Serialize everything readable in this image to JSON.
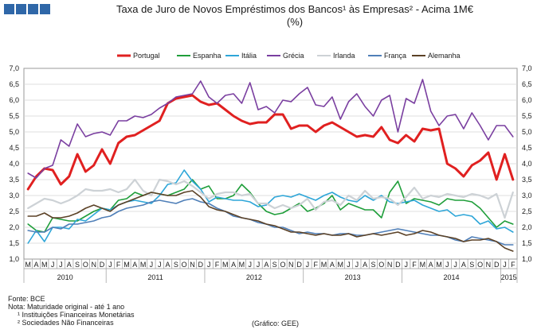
{
  "brand": {
    "logo_color": "#2f67a8"
  },
  "chart_data": {
    "type": "line",
    "title": "Taxa de Juro de Novos Empréstimos dos Bancos¹ às Empresas² - Acima 1M€",
    "subtitle": "(%)",
    "xlabel": "",
    "ylabel": "",
    "ylim": [
      1.0,
      7.0
    ],
    "yticks": [
      "1,0",
      "1,5",
      "2,0",
      "2,5",
      "3,0",
      "3,5",
      "4,0",
      "4,5",
      "5,0",
      "5,5",
      "6,0",
      "6,5",
      "7,0"
    ],
    "grid": true,
    "legend_position": "top",
    "month_labels": [
      "M",
      "A",
      "M",
      "J",
      "J",
      "A",
      "S",
      "O",
      "N",
      "D",
      "J",
      "F",
      "M",
      "A",
      "M",
      "J",
      "J",
      "A",
      "S",
      "O",
      "N",
      "D",
      "J",
      "F",
      "M",
      "A",
      "M",
      "J",
      "J",
      "A",
      "S",
      "O",
      "N",
      "D",
      "J",
      "F",
      "M",
      "A",
      "M",
      "J",
      "J",
      "A",
      "S",
      "O",
      "N",
      "D",
      "J",
      "F",
      "M",
      "A",
      "M",
      "J",
      "J",
      "A",
      "S",
      "O",
      "N",
      "D",
      "J",
      "F"
    ],
    "years": [
      {
        "label": "2010",
        "start": 0,
        "end": 10
      },
      {
        "label": "2011",
        "start": 10,
        "end": 22
      },
      {
        "label": "2012",
        "start": 22,
        "end": 34
      },
      {
        "label": "2013",
        "start": 34,
        "end": 46
      },
      {
        "label": "2014",
        "start": 46,
        "end": 58
      },
      {
        "label": "2015",
        "start": 58,
        "end": 60
      }
    ],
    "series": [
      {
        "name": "Portugal",
        "color": "#e02020",
        "width": 3.0,
        "values": [
          3.2,
          3.6,
          3.85,
          3.8,
          3.35,
          3.6,
          4.3,
          3.75,
          3.95,
          4.45,
          4.0,
          4.65,
          4.85,
          4.9,
          5.05,
          5.2,
          5.35,
          5.9,
          6.05,
          6.1,
          6.15,
          5.95,
          5.85,
          5.9,
          5.7,
          5.5,
          5.35,
          5.25,
          5.3,
          5.3,
          5.55,
          5.55,
          5.1,
          5.2,
          5.2,
          5.0,
          5.2,
          5.3,
          5.15,
          5.0,
          4.85,
          4.9,
          4.85,
          5.15,
          4.75,
          4.65,
          4.9,
          4.7,
          5.1,
          5.05,
          5.1,
          4.0,
          3.85,
          3.6,
          3.95,
          4.1,
          4.35,
          3.5,
          4.3,
          3.5
        ]
      },
      {
        "name": "Espanha",
        "color": "#1f9e3a",
        "width": 1.6,
        "values": [
          2.1,
          1.9,
          1.85,
          2.3,
          2.25,
          2.2,
          2.2,
          2.35,
          2.5,
          2.6,
          2.55,
          2.85,
          2.9,
          3.1,
          3.0,
          3.1,
          3.05,
          3.0,
          3.1,
          3.2,
          3.5,
          3.2,
          3.3,
          2.9,
          2.9,
          3.0,
          3.35,
          3.1,
          2.75,
          2.5,
          2.4,
          2.45,
          2.6,
          2.75,
          2.5,
          2.6,
          2.75,
          3.0,
          2.55,
          2.75,
          2.65,
          2.55,
          2.55,
          2.3,
          3.1,
          3.45,
          2.75,
          2.9,
          2.85,
          2.8,
          2.7,
          2.9,
          2.85,
          2.85,
          2.8,
          2.6,
          2.3,
          2.0,
          2.2,
          2.1
        ]
      },
      {
        "name": "Itália",
        "color": "#2ea6d8",
        "width": 1.6,
        "values": [
          1.5,
          1.9,
          1.55,
          2.0,
          2.0,
          1.95,
          2.25,
          2.2,
          2.4,
          2.6,
          2.55,
          2.7,
          2.8,
          2.85,
          2.8,
          2.75,
          3.0,
          3.35,
          3.4,
          3.8,
          3.45,
          3.2,
          2.8,
          2.95,
          2.9,
          2.85,
          2.85,
          2.8,
          2.65,
          2.7,
          2.95,
          3.0,
          2.95,
          3.05,
          2.95,
          2.85,
          3.0,
          3.1,
          2.95,
          2.85,
          2.8,
          3.0,
          2.85,
          3.0,
          2.8,
          2.75,
          2.8,
          2.85,
          2.7,
          2.6,
          2.5,
          2.55,
          2.35,
          2.4,
          2.35,
          2.1,
          2.2,
          1.95,
          2.0,
          1.85
        ]
      },
      {
        "name": "Grécia",
        "color": "#7a3fa0",
        "width": 1.6,
        "values": [
          3.7,
          3.55,
          3.85,
          3.95,
          4.75,
          4.55,
          5.25,
          4.85,
          4.95,
          5.0,
          4.9,
          5.35,
          5.35,
          5.5,
          5.45,
          5.55,
          5.75,
          5.9,
          6.1,
          6.15,
          6.2,
          6.6,
          6.1,
          5.9,
          6.15,
          6.2,
          5.9,
          6.55,
          5.7,
          5.8,
          5.6,
          6.0,
          5.95,
          6.2,
          6.4,
          5.85,
          5.8,
          6.1,
          5.4,
          5.95,
          6.2,
          5.8,
          5.5,
          6.0,
          6.15,
          5.0,
          6.05,
          5.9,
          6.65,
          5.65,
          5.2,
          5.5,
          5.55,
          5.1,
          5.6,
          5.2,
          4.75,
          5.2,
          5.2,
          4.85
        ]
      },
      {
        "name": "Irlanda",
        "color": "#cdd2d6",
        "width": 2.2,
        "values": [
          2.6,
          2.75,
          2.9,
          2.85,
          2.75,
          2.85,
          3.0,
          3.2,
          3.15,
          3.15,
          3.2,
          3.1,
          3.2,
          3.5,
          3.15,
          3.0,
          3.5,
          3.45,
          3.35,
          3.45,
          3.3,
          3.1,
          2.9,
          3.05,
          3.1,
          3.1,
          3.0,
          3.05,
          2.75,
          2.75,
          2.6,
          2.7,
          2.6,
          2.7,
          2.9,
          2.55,
          2.8,
          2.85,
          2.7,
          3.0,
          2.85,
          3.15,
          2.9,
          2.95,
          2.9,
          2.7,
          2.95,
          3.25,
          2.9,
          3.0,
          2.95,
          3.05,
          3.0,
          2.95,
          3.05,
          3.0,
          2.9,
          3.05,
          2.3,
          3.1
        ]
      },
      {
        "name": "França",
        "color": "#4f7fb8",
        "width": 1.6,
        "values": [
          1.9,
          1.85,
          1.85,
          2.0,
          1.95,
          2.1,
          2.1,
          2.15,
          2.2,
          2.3,
          2.35,
          2.5,
          2.6,
          2.65,
          2.7,
          2.8,
          2.85,
          2.8,
          2.75,
          2.85,
          2.9,
          2.8,
          2.75,
          2.6,
          2.5,
          2.35,
          2.3,
          2.25,
          2.15,
          2.1,
          2.0,
          2.0,
          1.9,
          1.8,
          1.85,
          1.8,
          1.8,
          1.75,
          1.8,
          1.8,
          1.75,
          1.75,
          1.8,
          1.85,
          1.9,
          1.95,
          1.9,
          1.85,
          1.8,
          1.75,
          1.75,
          1.7,
          1.6,
          1.55,
          1.7,
          1.65,
          1.6,
          1.55,
          1.45,
          1.45
        ]
      },
      {
        "name": "Alemanha",
        "color": "#5b4126",
        "width": 1.6,
        "values": [
          2.35,
          2.35,
          2.45,
          2.3,
          2.3,
          2.35,
          2.45,
          2.6,
          2.7,
          2.6,
          2.5,
          2.7,
          2.8,
          2.9,
          3.0,
          3.1,
          3.05,
          3.0,
          3.0,
          3.1,
          3.15,
          2.95,
          2.65,
          2.55,
          2.5,
          2.4,
          2.3,
          2.25,
          2.2,
          2.1,
          2.05,
          1.95,
          1.85,
          1.85,
          1.8,
          1.75,
          1.8,
          1.75,
          1.75,
          1.8,
          1.7,
          1.75,
          1.8,
          1.75,
          1.8,
          1.85,
          1.75,
          1.8,
          1.9,
          1.85,
          1.75,
          1.7,
          1.65,
          1.55,
          1.6,
          1.6,
          1.65,
          1.55,
          1.35,
          1.25
        ]
      }
    ]
  },
  "footnotes": {
    "source": "Fonte: BCE",
    "note": "Nota: Maturidade original - até 1 ano",
    "note1": "¹ Instituições Financeiras Monetárias",
    "note2": "² Sociedades Não Financeiras",
    "credit": "(Gráfico: GEE)"
  }
}
